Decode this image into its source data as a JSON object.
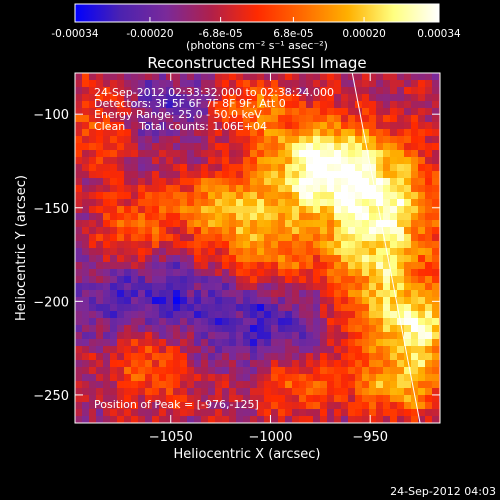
{
  "colors": {
    "background": "#000000",
    "text": "#ffffff",
    "colormap": [
      "#0000ff",
      "#4b22b0",
      "#7a2a9a",
      "#b0204a",
      "#ff2a00",
      "#ff6a00",
      "#ffb000",
      "#ffff80",
      "#ffffff"
    ]
  },
  "colorbar": {
    "range": [
      -0.00034,
      0.00034
    ],
    "ticks": [
      {
        "value": -0.00034,
        "label": "-0.00034"
      },
      {
        "value": -0.0002,
        "label": "-0.00020"
      },
      {
        "value": -6.8e-05,
        "label": "-6.8e-05"
      },
      {
        "value": 6.8e-05,
        "label": "6.8e-05"
      },
      {
        "value": 0.0002,
        "label": "0.00020"
      },
      {
        "value": 0.00034,
        "label": "0.00034"
      }
    ],
    "unit_label": "(photons cm⁻² s⁻¹ asec⁻²)"
  },
  "chart_data": {
    "type": "heatmap",
    "title": "Reconstructed RHESSI Image",
    "xlabel": "Heliocentric X (arcsec)",
    "ylabel": "Heliocentric Y (arcsec)",
    "xlim": [
      -1098,
      -915
    ],
    "ylim": [
      -265,
      -78
    ],
    "xticks": [
      {
        "value": -1050,
        "label": "−1050"
      },
      {
        "value": -1000,
        "label": "−1000"
      },
      {
        "value": -950,
        "label": "−950"
      }
    ],
    "yticks": [
      {
        "value": -100,
        "label": "−100"
      },
      {
        "value": -150,
        "label": "−150"
      },
      {
        "value": -200,
        "label": "−200"
      },
      {
        "value": -250,
        "label": "−250"
      }
    ],
    "limb_line": [
      {
        "x": -959,
        "y": -78
      },
      {
        "x": -925,
        "y": -265
      }
    ],
    "peak": {
      "x": -976,
      "y": -125
    },
    "hot_regions": [
      {
        "x": -976,
        "y": -125,
        "sx": 22,
        "sy": 16,
        "a": 1.0
      },
      {
        "x": -950,
        "y": -145,
        "sx": 26,
        "sy": 20,
        "a": 0.75
      },
      {
        "x": -945,
        "y": -185,
        "sx": 18,
        "sy": 30,
        "a": 0.8
      },
      {
        "x": -1025,
        "y": -150,
        "sx": 22,
        "sy": 12,
        "a": 0.7
      },
      {
        "x": -1005,
        "y": -175,
        "sx": 20,
        "sy": 14,
        "a": 0.6
      },
      {
        "x": -925,
        "y": -215,
        "sx": 12,
        "sy": 14,
        "a": 0.85
      },
      {
        "x": -935,
        "y": -245,
        "sx": 16,
        "sy": 12,
        "a": 0.65
      },
      {
        "x": -1060,
        "y": -230,
        "sx": 15,
        "sy": 16,
        "a": 0.55
      },
      {
        "x": -1010,
        "y": -95,
        "sx": 14,
        "sy": 10,
        "a": 0.55
      },
      {
        "x": -1085,
        "y": -105,
        "sx": 10,
        "sy": 18,
        "a": 0.45
      },
      {
        "x": -1070,
        "y": -165,
        "sx": 12,
        "sy": 14,
        "a": 0.55
      },
      {
        "x": -985,
        "y": -245,
        "sx": 14,
        "sy": 10,
        "a": 0.5
      }
    ],
    "cold_regions": [
      {
        "x": -1060,
        "y": -200,
        "sx": 30,
        "sy": 20,
        "a": 0.55
      },
      {
        "x": -1000,
        "y": -210,
        "sx": 22,
        "sy": 18,
        "a": 0.4
      },
      {
        "x": -1050,
        "y": -95,
        "sx": 20,
        "sy": 14,
        "a": 0.35
      }
    ]
  },
  "annotations": {
    "time_range": "24-Sep-2012 02:33:32.000 to 02:38:24.000",
    "detectors": "Detectors: 3F 5F 6F 7F 8F 9F, Att 0",
    "energy_range": "Energy Range: 25.0 - 50.0 keV",
    "method_counts": "Clean    Total counts: 1.06E+04",
    "peak_position": "Position of Peak = [-976,-125]"
  },
  "timestamp": "24-Sep-2012 04:03"
}
